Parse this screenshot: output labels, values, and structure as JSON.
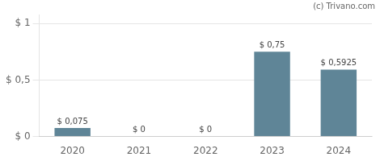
{
  "chart_data": {
    "type": "bar",
    "categories": [
      "2020",
      "2021",
      "2022",
      "2023",
      "2024"
    ],
    "values": [
      0.075,
      0,
      0,
      0.75,
      0.5925
    ],
    "value_labels": [
      "$ 0,075",
      "$ 0",
      "$ 0",
      "$ 0,75",
      "$ 0,5925"
    ],
    "data_labels": true,
    "color": "#5f8597",
    "ylim": [
      0,
      1.08
    ],
    "yticks": [
      {
        "value": 0,
        "label": "$ 0"
      },
      {
        "value": 0.5,
        "label": "$ 0,5"
      },
      {
        "value": 1,
        "label": "$ 1"
      }
    ],
    "grid": true,
    "annotations": [
      "(c) Trivano.com"
    ]
  }
}
